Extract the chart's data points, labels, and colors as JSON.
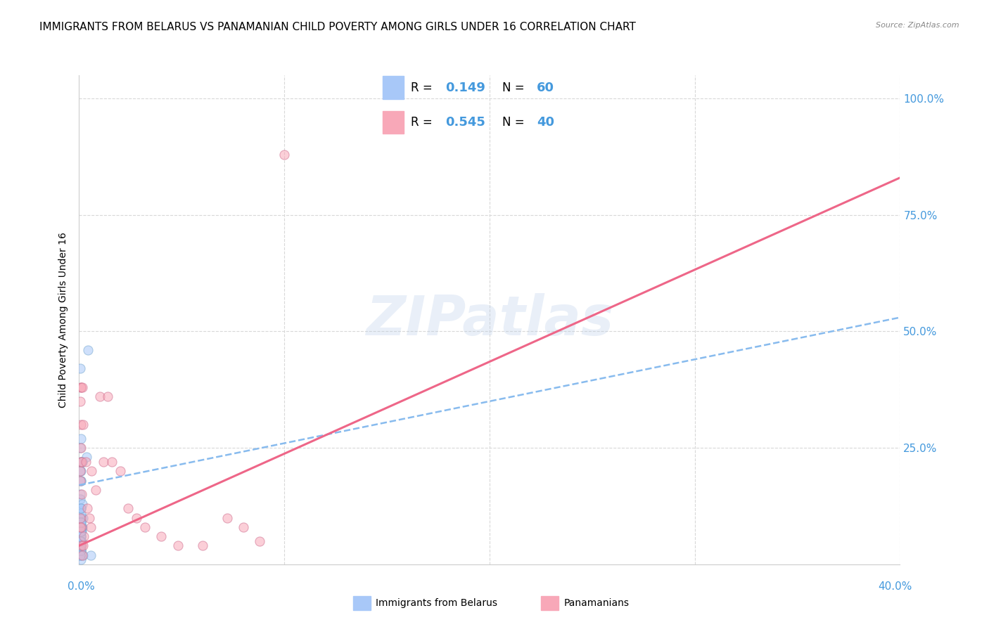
{
  "title": "IMMIGRANTS FROM BELARUS VS PANAMANIAN CHILD POVERTY AMONG GIRLS UNDER 16 CORRELATION CHART",
  "source": "Source: ZipAtlas.com",
  "ylabel": "Child Poverty Among Girls Under 16",
  "watermark": "ZIPatlas",
  "xlim": [
    0,
    0.4
  ],
  "ylim": [
    0,
    1.05
  ],
  "ytick_vals": [
    0.0,
    0.25,
    0.5,
    0.75,
    1.0
  ],
  "right_ytick_labels": [
    "",
    "25.0%",
    "50.0%",
    "75.0%",
    "100.0%"
  ],
  "blue_scatter_x": [
    0.0005,
    0.0008,
    0.001,
    0.0005,
    0.0007,
    0.0012,
    0.0006,
    0.0009,
    0.0011,
    0.0004,
    0.0006,
    0.0008,
    0.001,
    0.0007,
    0.0009,
    0.0005,
    0.0006,
    0.0008,
    0.0007,
    0.0009,
    0.001,
    0.0012,
    0.0008,
    0.0006,
    0.001,
    0.0015,
    0.0007,
    0.0008,
    0.0006,
    0.0005,
    0.0018,
    0.0015,
    0.002,
    0.0008,
    0.0012,
    0.001,
    0.0016,
    0.0035,
    0.0006,
    0.0007,
    0.0011,
    0.0007,
    0.0006,
    0.0008,
    0.0007,
    0.0006,
    0.0008,
    0.0014,
    0.0006,
    0.0007,
    0.0042,
    0.0055,
    0.0006,
    0.0007,
    0.001,
    0.0006,
    0.0007,
    0.0009,
    0.0005,
    0.0006
  ],
  "blue_scatter_y": [
    0.2,
    0.18,
    0.22,
    0.15,
    0.1,
    0.08,
    0.05,
    0.12,
    0.07,
    0.03,
    0.25,
    0.27,
    0.22,
    0.2,
    0.18,
    0.08,
    0.05,
    0.03,
    0.04,
    0.06,
    0.07,
    0.1,
    0.12,
    0.14,
    0.08,
    0.22,
    0.09,
    0.05,
    0.03,
    0.04,
    0.1,
    0.08,
    0.02,
    0.06,
    0.05,
    0.03,
    0.22,
    0.23,
    0.02,
    0.04,
    0.08,
    0.06,
    0.03,
    0.05,
    0.07,
    0.09,
    0.11,
    0.13,
    0.02,
    0.01,
    0.46,
    0.02,
    0.42,
    0.12,
    0.03,
    0.05,
    0.07,
    0.09,
    0.02,
    0.04
  ],
  "pink_scatter_x": [
    0.0005,
    0.0008,
    0.001,
    0.0006,
    0.0009,
    0.0006,
    0.0009,
    0.0006,
    0.0005,
    0.0009,
    0.0012,
    0.0016,
    0.0013,
    0.002,
    0.0032,
    0.004,
    0.005,
    0.006,
    0.0056,
    0.0082,
    0.01,
    0.012,
    0.014,
    0.016,
    0.02,
    0.024,
    0.028,
    0.032,
    0.04,
    0.048,
    0.06,
    0.072,
    0.08,
    0.088,
    0.0009,
    0.0012,
    0.0016,
    0.002,
    0.0024,
    0.1
  ],
  "pink_scatter_y": [
    0.2,
    0.38,
    0.38,
    0.35,
    0.3,
    0.18,
    0.22,
    0.08,
    0.1,
    0.25,
    0.15,
    0.38,
    0.22,
    0.3,
    0.22,
    0.12,
    0.1,
    0.2,
    0.08,
    0.16,
    0.36,
    0.22,
    0.36,
    0.22,
    0.2,
    0.12,
    0.1,
    0.08,
    0.06,
    0.04,
    0.04,
    0.1,
    0.08,
    0.05,
    0.08,
    0.04,
    0.02,
    0.04,
    0.06,
    0.88
  ],
  "blue_line_x": [
    0.0,
    0.4
  ],
  "blue_line_y": [
    0.17,
    0.53
  ],
  "pink_line_x": [
    0.0,
    0.4
  ],
  "pink_line_y": [
    0.04,
    0.83
  ],
  "blue_scatter_color": "#a8c8f8",
  "blue_scatter_edge": "#7aaad0",
  "pink_scatter_color": "#f8a8b8",
  "pink_scatter_edge": "#d07090",
  "blue_line_color": "#88bbee",
  "pink_line_color": "#ee6688",
  "right_tick_color": "#4499dd",
  "grid_color": "#d8d8d8",
  "title_fontsize": 11,
  "axis_label_fontsize": 10,
  "tick_fontsize": 11,
  "scatter_size": 90,
  "scatter_alpha": 0.55,
  "legend_R1": "0.149",
  "legend_N1": "60",
  "legend_R2": "0.545",
  "legend_N2": "40"
}
